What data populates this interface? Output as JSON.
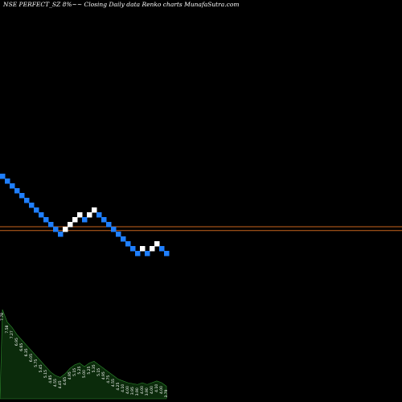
{
  "title": "NSE PERFECT_SZ 8%~~ Closing Daily data Renko charts MunafaSutra.com",
  "colors": {
    "background": "#000000",
    "up_brick": "#ffffff",
    "down_brick": "#1f7fff",
    "ref_line": "#c8641e",
    "volume_fill": "#0b2b0b",
    "volume_stroke": "#2f8f2f"
  },
  "chart_data": {
    "type": "renko",
    "title": "NSE PERFECT_SZ 8%~~ Closing Daily data Renko charts MunafaSutra.com",
    "bricks": [
      {
        "level": 8.5,
        "dir": "down"
      },
      {
        "level": 8.0,
        "dir": "down"
      },
      {
        "level": 7.5,
        "dir": "down"
      },
      {
        "level": 7.0,
        "dir": "down"
      },
      {
        "level": 6.5,
        "dir": "down"
      },
      {
        "level": 6.0,
        "dir": "down"
      },
      {
        "level": 5.5,
        "dir": "down"
      },
      {
        "level": 5.0,
        "dir": "down"
      },
      {
        "level": 4.5,
        "dir": "down"
      },
      {
        "level": 4.0,
        "dir": "down"
      },
      {
        "level": 3.5,
        "dir": "down"
      },
      {
        "level": 3.0,
        "dir": "down"
      },
      {
        "level": 2.5,
        "dir": "down"
      },
      {
        "level": 3.0,
        "dir": "up"
      },
      {
        "level": 3.5,
        "dir": "up"
      },
      {
        "level": 4.0,
        "dir": "up"
      },
      {
        "level": 4.5,
        "dir": "up"
      },
      {
        "level": 4.0,
        "dir": "down"
      },
      {
        "level": 4.5,
        "dir": "up"
      },
      {
        "level": 5.0,
        "dir": "up"
      },
      {
        "level": 4.5,
        "dir": "down"
      },
      {
        "level": 4.0,
        "dir": "down"
      },
      {
        "level": 3.5,
        "dir": "down"
      },
      {
        "level": 3.0,
        "dir": "down"
      },
      {
        "level": 2.5,
        "dir": "down"
      },
      {
        "level": 2.0,
        "dir": "down"
      },
      {
        "level": 1.5,
        "dir": "down"
      },
      {
        "level": 1.0,
        "dir": "down"
      },
      {
        "level": 0.5,
        "dir": "down"
      },
      {
        "level": 1.0,
        "dir": "up"
      },
      {
        "level": 0.5,
        "dir": "down"
      },
      {
        "level": 1.0,
        "dir": "up"
      },
      {
        "level": 1.5,
        "dir": "up"
      },
      {
        "level": 1.0,
        "dir": "down"
      },
      {
        "level": 0.5,
        "dir": "down"
      }
    ],
    "reference_lines": [
      3.5,
      3.1
    ],
    "volume_labels": [
      "7.78",
      "7.58",
      "7.27",
      "6.95",
      "6.65",
      "6.35",
      "6.05",
      "5.75",
      "5.45",
      "5.15",
      "4.85",
      "4.55",
      "4.45",
      "4.65",
      "4.95",
      "5.15",
      "5.25",
      "5.00",
      "5.25",
      "5.35",
      "5.15",
      "4.95",
      "4.75",
      "4.55",
      "4.25",
      "4.10",
      "4.00",
      "3.95",
      "3.90",
      "4.00",
      "3.90",
      "4.00",
      "4.10",
      "4.00",
      "3.79"
    ],
    "volume_values": [
      100,
      86,
      80,
      72,
      66,
      60,
      54,
      48,
      42,
      36,
      30,
      26,
      24,
      28,
      34,
      38,
      40,
      36,
      40,
      42,
      38,
      34,
      30,
      26,
      22,
      20,
      18,
      17,
      16,
      18,
      16,
      18,
      20,
      18,
      14
    ],
    "ylim": [
      0,
      9
    ]
  }
}
